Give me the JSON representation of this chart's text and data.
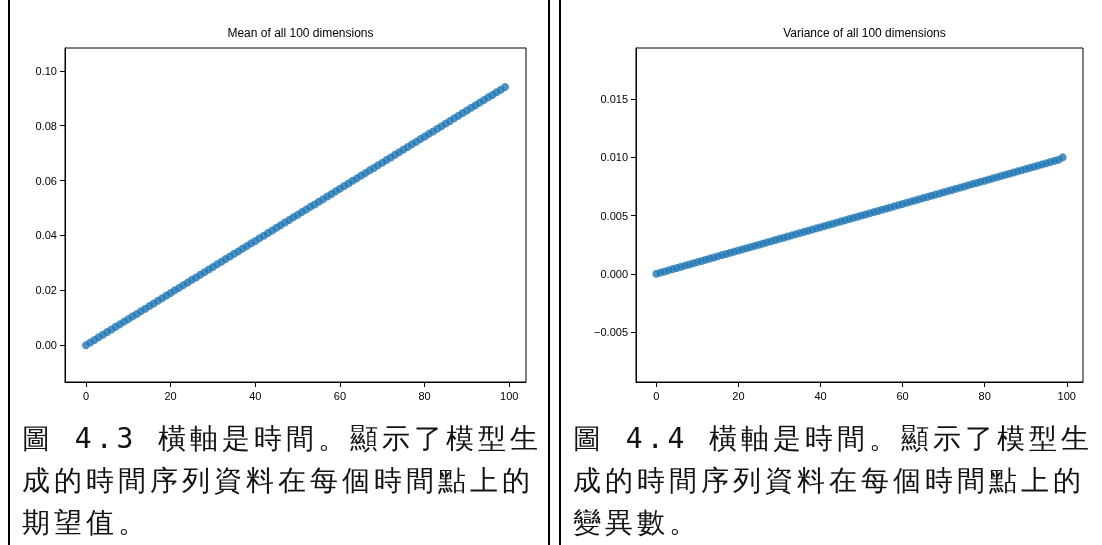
{
  "chart_data": [
    {
      "type": "scatter",
      "title": "Mean of all 100 dimensions",
      "marker": "circle",
      "grid": false,
      "annotations": [
        "圖 4.3 橫軸是時間。顯示了模型生成的時間序列資料在每個時間點上的期望值。"
      ],
      "x": [
        0,
        1,
        2,
        3,
        4,
        5,
        6,
        7,
        8,
        9,
        10,
        11,
        12,
        13,
        14,
        15,
        16,
        17,
        18,
        19,
        20,
        21,
        22,
        23,
        24,
        25,
        26,
        27,
        28,
        29,
        30,
        31,
        32,
        33,
        34,
        35,
        36,
        37,
        38,
        39,
        40,
        41,
        42,
        43,
        44,
        45,
        46,
        47,
        48,
        49,
        50,
        51,
        52,
        53,
        54,
        55,
        56,
        57,
        58,
        59,
        60,
        61,
        62,
        63,
        64,
        65,
        66,
        67,
        68,
        69,
        70,
        71,
        72,
        73,
        74,
        75,
        76,
        77,
        78,
        79,
        80,
        81,
        82,
        83,
        84,
        85,
        86,
        87,
        88,
        89,
        90,
        91,
        92,
        93,
        94,
        95,
        96,
        97,
        98,
        99
      ],
      "series": [
        {
          "color": "#1f77b4",
          "values": [
            0,
            0.001,
            0.0019,
            0.0029,
            0.0038,
            0.0048,
            0.0057,
            0.0067,
            0.0076,
            0.0086,
            0.0095,
            0.0105,
            0.0114,
            0.0124,
            0.0133,
            0.0143,
            0.0152,
            0.0162,
            0.0171,
            0.0181,
            0.019,
            0.02,
            0.0209,
            0.0219,
            0.0228,
            0.0238,
            0.0247,
            0.0257,
            0.0266,
            0.0276,
            0.0285,
            0.0295,
            0.0304,
            0.0314,
            0.0323,
            0.0333,
            0.0342,
            0.0352,
            0.0361,
            0.0371,
            0.038,
            0.039,
            0.0399,
            0.0409,
            0.0418,
            0.0428,
            0.0437,
            0.0447,
            0.0456,
            0.0466,
            0.0475,
            0.0485,
            0.0494,
            0.0504,
            0.0513,
            0.0523,
            0.0532,
            0.0542,
            0.0551,
            0.0561,
            0.057,
            0.058,
            0.0589,
            0.0599,
            0.0608,
            0.0618,
            0.0627,
            0.0637,
            0.0646,
            0.0656,
            0.0665,
            0.0675,
            0.0684,
            0.0694,
            0.0703,
            0.0713,
            0.0722,
            0.0732,
            0.0741,
            0.0751,
            0.076,
            0.077,
            0.0779,
            0.0789,
            0.0798,
            0.0808,
            0.0817,
            0.0827,
            0.0836,
            0.0846,
            0.0855,
            0.0865,
            0.0874,
            0.0884,
            0.0893,
            0.0903,
            0.0912,
            0.0922,
            0.0931,
            0.0941
          ]
        }
      ],
      "xlim": [
        -4.95,
        103.95
      ],
      "xticks": [
        0,
        20,
        40,
        60,
        80,
        100
      ],
      "ylim": [
        -0.0134,
        0.1083
      ],
      "yticks": [
        {
          "value": 0,
          "label": "0.00"
        },
        {
          "value": 0.02,
          "label": "0.02"
        },
        {
          "value": 0.04,
          "label": "0.04"
        },
        {
          "value": 0.06,
          "label": "0.06"
        },
        {
          "value": 0.08,
          "label": "0.08"
        },
        {
          "value": 0.1,
          "label": "0.10"
        }
      ]
    },
    {
      "type": "scatter",
      "title": "Variance of all 100 dimensions",
      "marker": "circle",
      "grid": false,
      "annotations": [
        "圖 4.4 橫軸是時間。顯示了模型生成的時間序列資料在每個時間點上的變異數。"
      ],
      "x": [
        0,
        1,
        2,
        3,
        4,
        5,
        6,
        7,
        8,
        9,
        10,
        11,
        12,
        13,
        14,
        15,
        16,
        17,
        18,
        19,
        20,
        21,
        22,
        23,
        24,
        25,
        26,
        27,
        28,
        29,
        30,
        31,
        32,
        33,
        34,
        35,
        36,
        37,
        38,
        39,
        40,
        41,
        42,
        43,
        44,
        45,
        46,
        47,
        48,
        49,
        50,
        51,
        52,
        53,
        54,
        55,
        56,
        57,
        58,
        59,
        60,
        61,
        62,
        63,
        64,
        65,
        66,
        67,
        68,
        69,
        70,
        71,
        72,
        73,
        74,
        75,
        76,
        77,
        78,
        79,
        80,
        81,
        82,
        83,
        84,
        85,
        86,
        87,
        88,
        89,
        90,
        91,
        92,
        93,
        94,
        95,
        96,
        97,
        98,
        99
      ],
      "series": [
        {
          "color": "#1f77b4",
          "values": [
            0,
            0.0001,
            0.0002,
            0.0003,
            0.0004,
            0.0005,
            0.0006,
            0.0007,
            0.0008,
            0.0009,
            0.001,
            0.0011,
            0.0012,
            0.0013,
            0.0014,
            0.0015,
            0.0016,
            0.0017,
            0.0018,
            0.0019,
            0.002,
            0.0021,
            0.0022,
            0.0023,
            0.0024,
            0.0025,
            0.0026,
            0.0027,
            0.0028,
            0.0029,
            0.003,
            0.0031,
            0.0032,
            0.0033,
            0.0034,
            0.0035,
            0.0036,
            0.0037,
            0.0038,
            0.0039,
            0.004,
            0.0041,
            0.0042,
            0.0043,
            0.0044,
            0.0045,
            0.0046,
            0.0047,
            0.0048,
            0.0049,
            0.005,
            0.0051,
            0.0052,
            0.0053,
            0.0054,
            0.0055,
            0.0056,
            0.0057,
            0.0058,
            0.0059,
            0.006,
            0.0061,
            0.0062,
            0.0063,
            0.0064,
            0.0065,
            0.0066,
            0.0067,
            0.0068,
            0.0069,
            0.007,
            0.0071,
            0.0072,
            0.0073,
            0.0074,
            0.0075,
            0.0076,
            0.0077,
            0.0078,
            0.0079,
            0.008,
            0.0081,
            0.0082,
            0.0083,
            0.0084,
            0.0085,
            0.0086,
            0.0087,
            0.0088,
            0.0089,
            0.009,
            0.0091,
            0.0092,
            0.0093,
            0.0094,
            0.0095,
            0.0096,
            0.0097,
            0.0098,
            0.01
          ]
        }
      ],
      "xlim": [
        -4.95,
        103.95
      ],
      "xticks": [
        0,
        20,
        40,
        60,
        80,
        100
      ],
      "ylim": [
        -0.0093,
        0.0194
      ],
      "yticks": [
        {
          "value": -0.005,
          "label": "−0.005"
        },
        {
          "value": 0,
          "label": "0.000"
        },
        {
          "value": 0.005,
          "label": "0.005"
        },
        {
          "value": 0.01,
          "label": "0.010"
        },
        {
          "value": 0.015,
          "label": "0.015"
        }
      ]
    }
  ]
}
